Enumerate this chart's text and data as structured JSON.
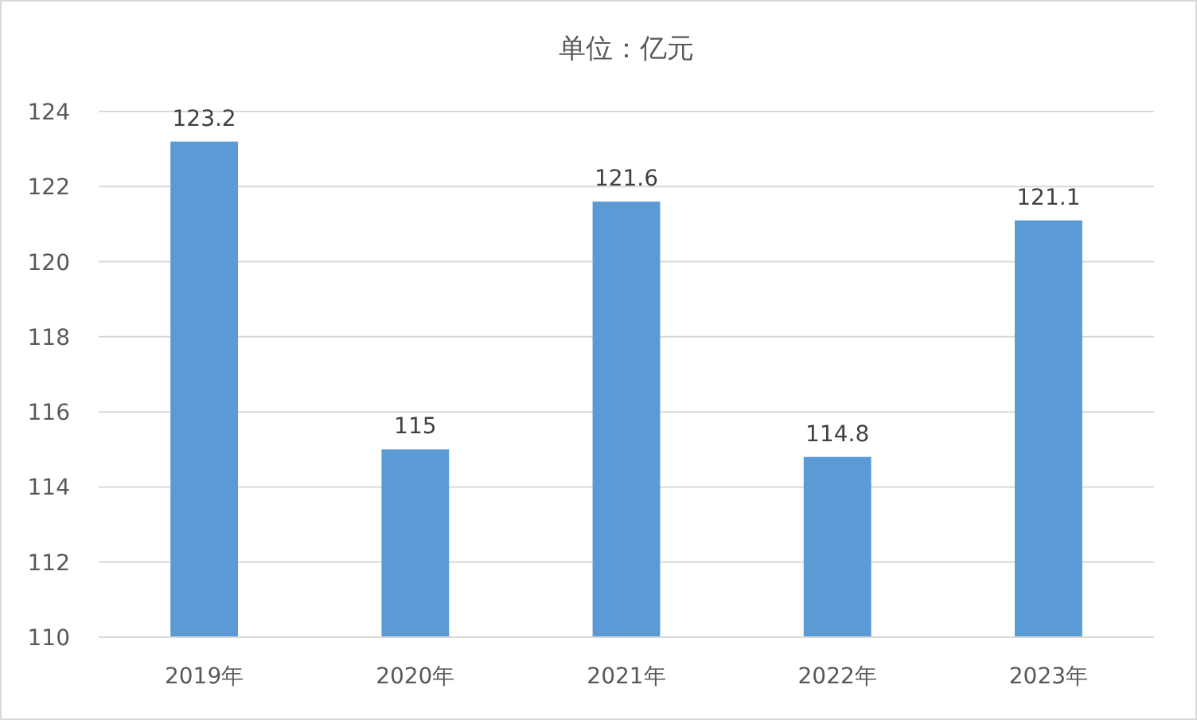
{
  "chart_data": {
    "type": "bar",
    "title": "单位：亿元",
    "categories": [
      "2019年",
      "2020年",
      "2021年",
      "2022年",
      "2023年"
    ],
    "values": [
      123.2,
      115,
      121.6,
      114.8,
      121.1
    ],
    "color": "#5b9bd5",
    "ylim": [
      110,
      124
    ],
    "yticks": [
      110,
      112,
      114,
      116,
      118,
      120,
      122,
      124
    ],
    "grid": "y",
    "data_labels": true
  }
}
